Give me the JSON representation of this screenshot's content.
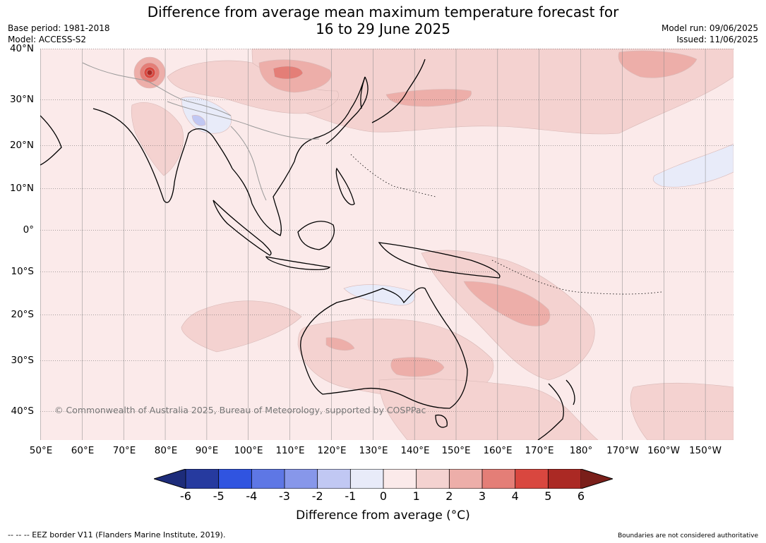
{
  "header": {
    "title_line1": "Difference from average mean maximum temperature forecast for",
    "title_line2": "16 to 29 June 2025",
    "base_period": "Base period: 1981-2018",
    "model": "Model: ACCESS-S2",
    "model_run": "Model run: 09/06/2025",
    "issued": "Issued: 11/06/2025"
  },
  "map": {
    "lat_labels": [
      "40°N",
      "30°N",
      "20°N",
      "10°N",
      "0°",
      "10°S",
      "20°S",
      "30°S",
      "40°S"
    ],
    "lon_labels": [
      "50°E",
      "60°E",
      "70°E",
      "80°E",
      "90°E",
      "100°E",
      "110°E",
      "120°E",
      "130°E",
      "140°E",
      "150°E",
      "160°E",
      "170°E",
      "180°",
      "170°W",
      "160°W",
      "150°W"
    ],
    "copyright": "© Commonwealth of Australia 2025, Bureau of Meteorology, supported by COSPPac",
    "colors": {
      "ocean_base": "#fbeaea",
      "band_1_2": "#f4d2d0",
      "band_2_3": "#edaea9",
      "band_3_4": "#e47e77",
      "band_4_5": "#d9473f",
      "band_5_6": "#ab2924",
      "band_neg_0_1": "#e8ebf9",
      "band_neg_1_2": "#c1c8f3",
      "coast": "#000000",
      "borders": "#999999"
    }
  },
  "colorbar": {
    "ticks": [
      "-6",
      "-5",
      "-4",
      "-3",
      "-2",
      "-1",
      "0",
      "1",
      "2",
      "3",
      "4",
      "5",
      "6"
    ],
    "colors": [
      "#263a9f",
      "#3054e0",
      "#5e77e5",
      "#8797ea",
      "#c1c8f3",
      "#e8ebf9",
      "#fbeaea",
      "#f4d2d0",
      "#edaea9",
      "#e47e77",
      "#d9473f",
      "#ab2924"
    ],
    "under_color": "#1d2c7a",
    "over_color": "#7a1f1a",
    "label": "Difference from average (°C)"
  },
  "footer": {
    "eez": "-- -- -- EEZ border V11 (Flanders Marine Institute, 2019).",
    "boundaries": "Boundaries are not considered authoritative"
  }
}
